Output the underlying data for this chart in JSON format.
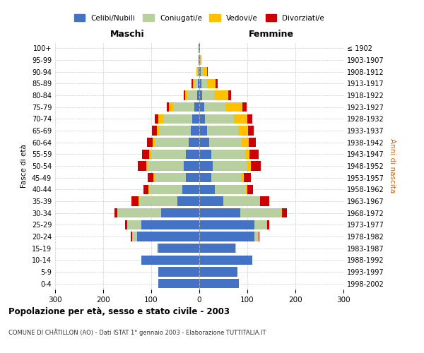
{
  "age_groups": [
    "0-4",
    "5-9",
    "10-14",
    "15-19",
    "20-24",
    "25-29",
    "30-34",
    "35-39",
    "40-44",
    "45-49",
    "50-54",
    "55-59",
    "60-64",
    "65-69",
    "70-74",
    "75-79",
    "80-84",
    "85-89",
    "90-94",
    "95-99",
    "100+"
  ],
  "birth_years": [
    "1998-2002",
    "1993-1997",
    "1988-1992",
    "1983-1987",
    "1978-1982",
    "1973-1977",
    "1968-1972",
    "1963-1967",
    "1958-1962",
    "1953-1957",
    "1948-1952",
    "1943-1947",
    "1938-1942",
    "1933-1937",
    "1928-1932",
    "1923-1927",
    "1918-1922",
    "1913-1917",
    "1908-1912",
    "1903-1907",
    "≤ 1902"
  ],
  "male_celibe": [
    85,
    85,
    120,
    85,
    130,
    120,
    80,
    45,
    35,
    28,
    32,
    28,
    22,
    18,
    15,
    10,
    5,
    3,
    2,
    1,
    1
  ],
  "male_coniugato": [
    0,
    0,
    0,
    3,
    10,
    30,
    90,
    80,
    70,
    65,
    75,
    72,
    70,
    65,
    60,
    45,
    20,
    8,
    3,
    1,
    0
  ],
  "male_vedovo": [
    0,
    0,
    0,
    0,
    0,
    0,
    1,
    1,
    1,
    2,
    3,
    4,
    5,
    5,
    10,
    8,
    5,
    2,
    1,
    0,
    0
  ],
  "male_divorziato": [
    0,
    0,
    0,
    0,
    3,
    4,
    5,
    15,
    10,
    12,
    18,
    15,
    12,
    10,
    8,
    5,
    3,
    3,
    0,
    0,
    0
  ],
  "female_celibe": [
    82,
    80,
    110,
    75,
    115,
    115,
    85,
    50,
    32,
    25,
    28,
    25,
    20,
    16,
    12,
    10,
    6,
    4,
    3,
    1,
    1
  ],
  "female_coniugato": [
    0,
    0,
    0,
    2,
    8,
    25,
    85,
    75,
    65,
    62,
    72,
    70,
    68,
    65,
    60,
    45,
    25,
    12,
    5,
    1,
    0
  ],
  "female_vedovo": [
    0,
    0,
    0,
    0,
    0,
    1,
    2,
    2,
    3,
    5,
    8,
    10,
    15,
    20,
    28,
    35,
    30,
    18,
    8,
    2,
    0
  ],
  "female_divorziato": [
    0,
    0,
    0,
    0,
    2,
    5,
    10,
    18,
    12,
    15,
    20,
    18,
    15,
    12,
    10,
    8,
    5,
    4,
    1,
    0,
    0
  ],
  "colors": {
    "celibe": "#4472c4",
    "coniugato": "#b8cfa0",
    "vedovo": "#ffc000",
    "divorziato": "#cc0000"
  },
  "title": "Popolazione per età, sesso e stato civile - 2003",
  "subtitle": "COMUNE DI CHÂTILLON (AO) - Dati ISTAT 1° gennaio 2003 - Elaborazione TUTTITALIA.IT",
  "xlabel_left": "Maschi",
  "xlabel_right": "Femmine",
  "ylabel_left": "Fasce di età",
  "ylabel_right": "Anni di nascita",
  "xlim": 300,
  "bg_color": "#ffffff",
  "grid_color": "#cccccc"
}
